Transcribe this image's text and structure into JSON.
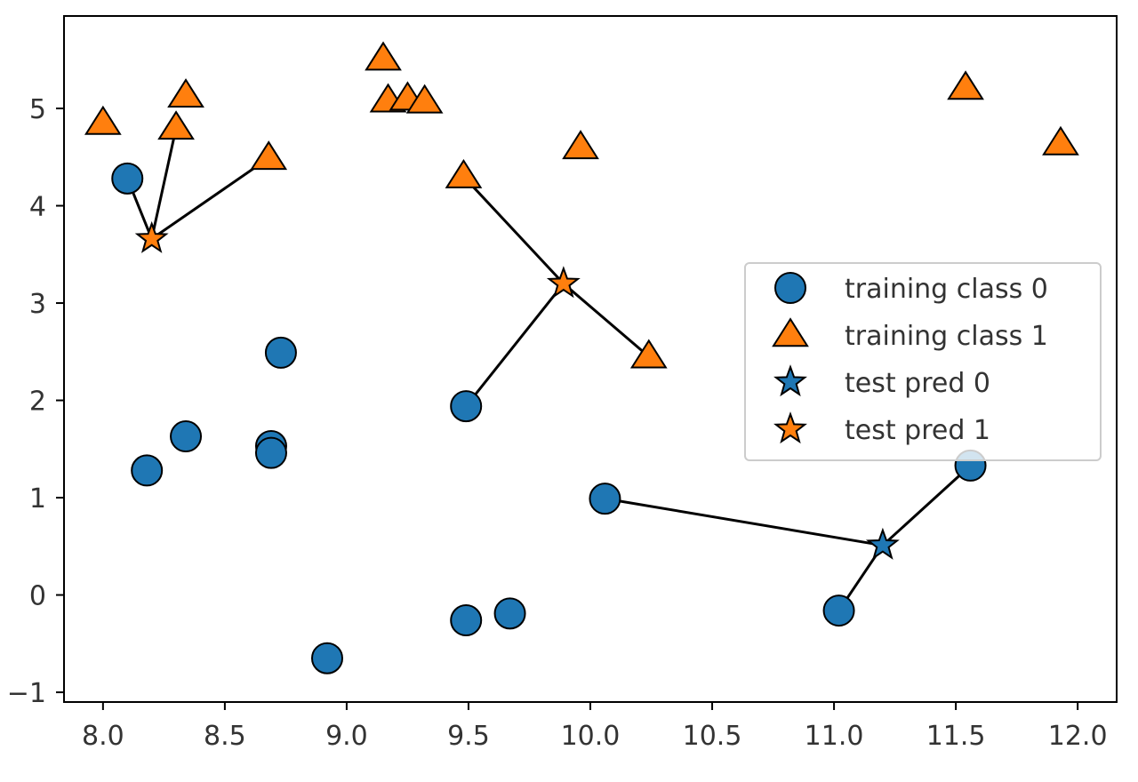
{
  "chart_data": {
    "type": "scatter",
    "title": "",
    "xlabel": "",
    "ylabel": "",
    "xlim": [
      7.84,
      12.16
    ],
    "ylim": [
      -1.1,
      5.95
    ],
    "xticks": [
      8.0,
      8.5,
      9.0,
      9.5,
      10.0,
      10.5,
      11.0,
      11.5,
      12.0
    ],
    "xtick_labels": [
      "8.0",
      "8.5",
      "9.0",
      "9.5",
      "10.0",
      "10.5",
      "11.0",
      "11.5",
      "12.0"
    ],
    "yticks": [
      -1,
      0,
      1,
      2,
      3,
      4,
      5
    ],
    "ytick_labels": [
      "−1",
      "0",
      "1",
      "2",
      "3",
      "4",
      "5"
    ],
    "grid": false,
    "legend_position": "center-right",
    "series": [
      {
        "name": "training class 0",
        "marker": "circle",
        "color": "#1f77b4",
        "points": [
          [
            8.1,
            4.28
          ],
          [
            8.18,
            1.28
          ],
          [
            8.34,
            1.63
          ],
          [
            8.69,
            1.53
          ],
          [
            8.69,
            1.46
          ],
          [
            8.73,
            2.49
          ],
          [
            8.92,
            -0.65
          ],
          [
            9.49,
            1.94
          ],
          [
            9.49,
            -0.26
          ],
          [
            9.67,
            -0.19
          ],
          [
            10.06,
            0.99
          ],
          [
            11.02,
            -0.16
          ],
          [
            11.56,
            1.33
          ]
        ]
      },
      {
        "name": "training class 1",
        "marker": "triangle",
        "color": "#ff7f0e",
        "points": [
          [
            8.0,
            4.85
          ],
          [
            8.3,
            4.8
          ],
          [
            8.34,
            5.13
          ],
          [
            8.68,
            4.49
          ],
          [
            9.15,
            5.51
          ],
          [
            9.17,
            5.08
          ],
          [
            9.25,
            5.1
          ],
          [
            9.32,
            5.07
          ],
          [
            9.48,
            4.3
          ],
          [
            9.96,
            4.6
          ],
          [
            10.24,
            2.45
          ],
          [
            11.54,
            5.21
          ],
          [
            11.93,
            4.64
          ]
        ]
      },
      {
        "name": "test pred 0",
        "marker": "star",
        "color": "#1f77b4",
        "points": [
          [
            11.2,
            0.51
          ]
        ]
      },
      {
        "name": "test pred 1",
        "marker": "star",
        "color": "#ff7f0e",
        "points": [
          [
            8.2,
            3.66
          ],
          [
            9.89,
            3.2
          ]
        ]
      }
    ],
    "neighbor_lines": [
      {
        "from": [
          8.2,
          3.66
        ],
        "to": [
          8.1,
          4.28
        ]
      },
      {
        "from": [
          8.2,
          3.66
        ],
        "to": [
          8.3,
          4.8
        ]
      },
      {
        "from": [
          8.2,
          3.66
        ],
        "to": [
          8.68,
          4.49
        ]
      },
      {
        "from": [
          9.89,
          3.2
        ],
        "to": [
          9.48,
          4.3
        ]
      },
      {
        "from": [
          9.89,
          3.2
        ],
        "to": [
          9.49,
          1.94
        ]
      },
      {
        "from": [
          9.89,
          3.2
        ],
        "to": [
          10.24,
          2.45
        ]
      },
      {
        "from": [
          11.2,
          0.51
        ],
        "to": [
          10.06,
          0.99
        ]
      },
      {
        "from": [
          11.2,
          0.51
        ],
        "to": [
          11.56,
          1.33
        ]
      },
      {
        "from": [
          11.2,
          0.51
        ],
        "to": [
          11.02,
          -0.16
        ]
      }
    ],
    "colors": {
      "class0": "#1f77b4",
      "class1": "#ff7f0e",
      "edge": "#000000",
      "line": "#000000"
    }
  }
}
